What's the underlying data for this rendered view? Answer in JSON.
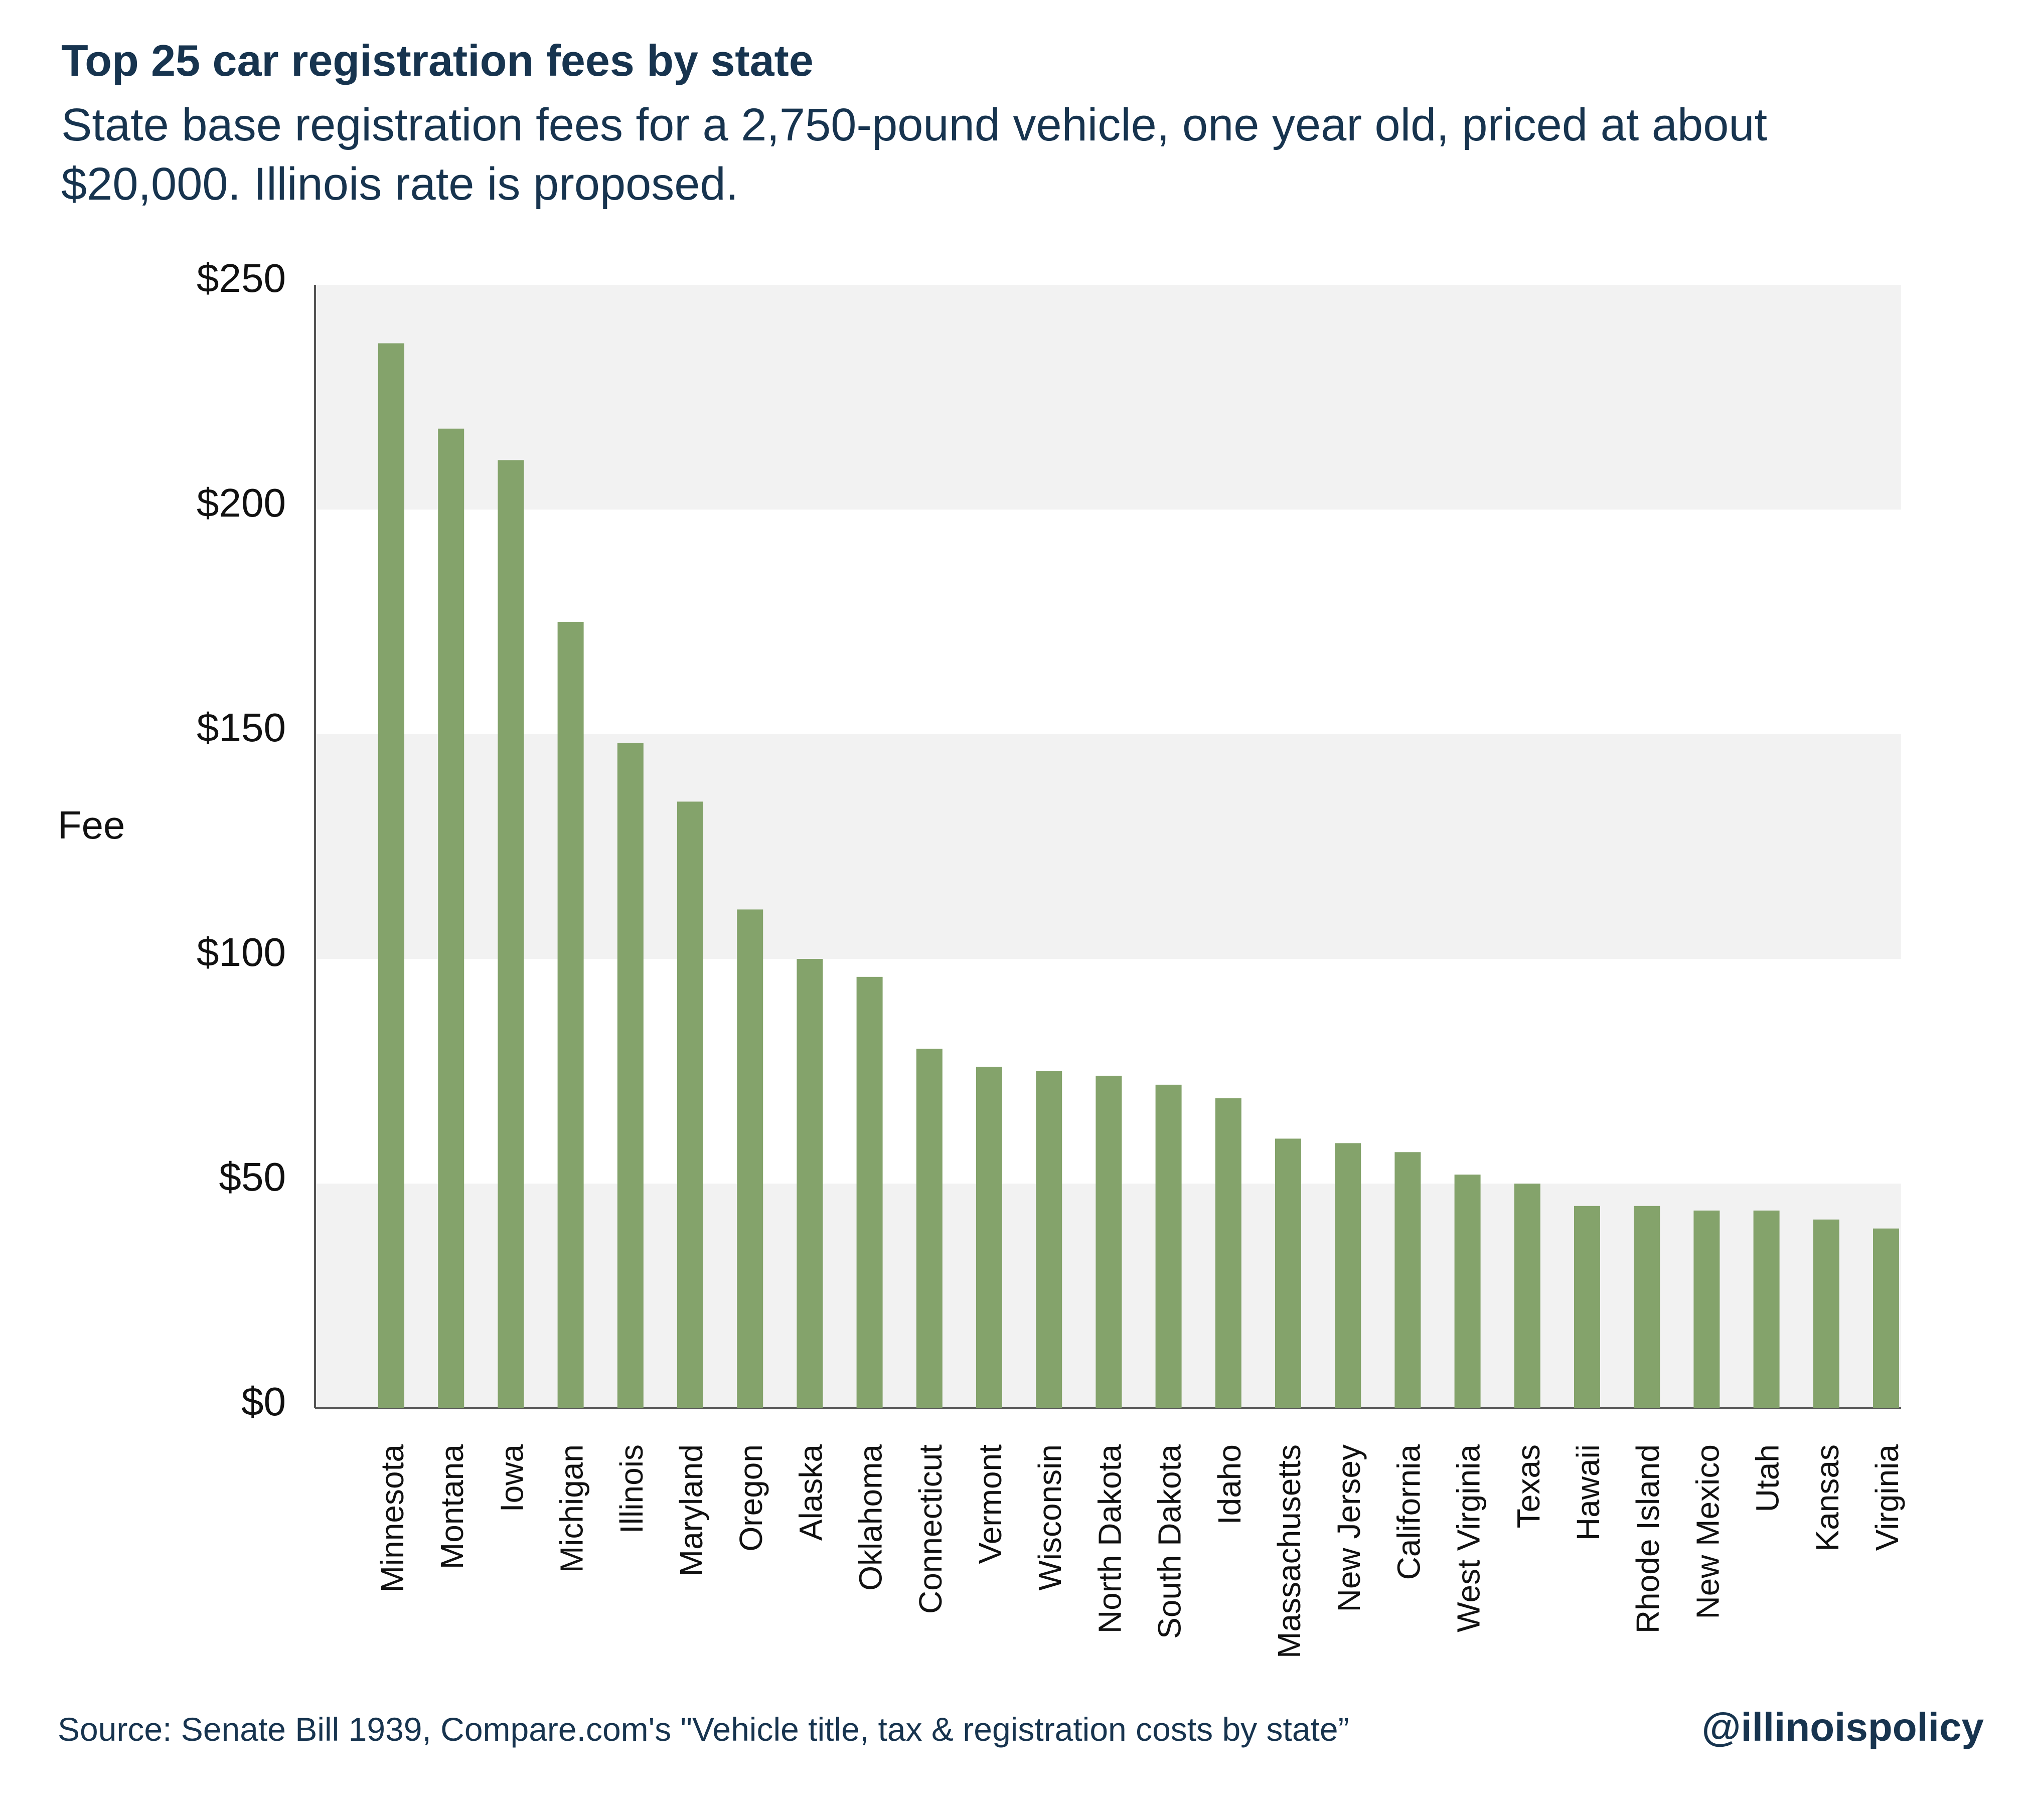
{
  "header": {
    "title": "Top 25 car registration fees by state",
    "subtitle": "State base registration fees for a 2,750-pound vehicle, one year old, priced at about $20,000. Illinois rate is proposed."
  },
  "footer": {
    "source": "Source: Senate Bill 1939, Compare.com's \"Vehicle title, tax & registration costs by state”",
    "handle": "@illinoispolicy"
  },
  "colors": {
    "bar": "#84a36b",
    "band": "#f2f2f2",
    "axis": "#555555",
    "text": "#17344f"
  },
  "chart_data": {
    "type": "bar",
    "title": "Top 25 car registration fees by state",
    "xlabel": "",
    "ylabel": "Fee",
    "ylim": [
      0,
      250
    ],
    "yticks": [
      0,
      50,
      100,
      150,
      200,
      250
    ],
    "ytick_labels": [
      "$0",
      "$50",
      "$100",
      "$150",
      "$200",
      "$250"
    ],
    "grid": "alternating horizontal bands",
    "categories": [
      "Minnesota",
      "Montana",
      "Iowa",
      "Michigan",
      "Illinois",
      "Maryland",
      "Oregon",
      "Alaska",
      "Oklahoma",
      "Connecticut",
      "Vermont",
      "Wisconsin",
      "North Dakota",
      "South Dakota",
      "Idaho",
      "Massachusetts",
      "New Jersey",
      "California",
      "West Virginia",
      "Texas",
      "Hawaii",
      "Rhode Island",
      "New Mexico",
      "Utah",
      "Kansas",
      "Virginia"
    ],
    "values": [
      237,
      218,
      211,
      175,
      148,
      135,
      111,
      100,
      96,
      80,
      76,
      75,
      74,
      72,
      69,
      60,
      59,
      57,
      52,
      50,
      45,
      45,
      44,
      44,
      42,
      40
    ]
  }
}
